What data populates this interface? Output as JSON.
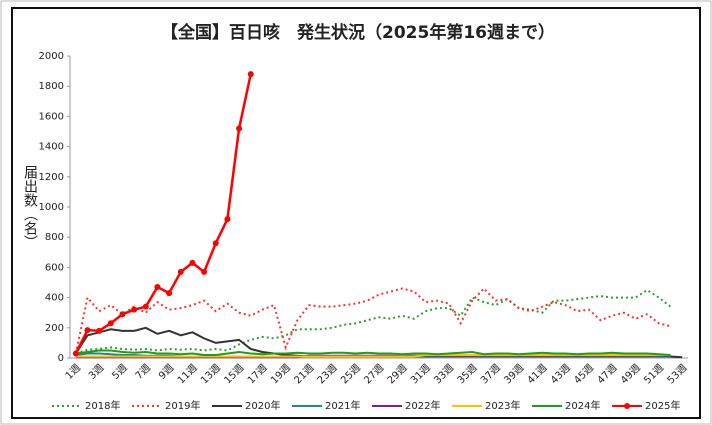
{
  "chart_data": {
    "type": "line",
    "title": "【全国】百日咳　発生状況（2025年第16週まで）",
    "y_label": "届出数（名）",
    "categories": [
      "1週",
      null,
      "3週",
      null,
      "5週",
      null,
      "7週",
      null,
      "9週",
      null,
      "11週",
      null,
      "13週",
      null,
      "15週",
      null,
      "17週",
      null,
      "19週",
      null,
      "21週",
      null,
      "23週",
      null,
      "25週",
      null,
      "27週",
      null,
      "29週",
      null,
      "31週",
      null,
      "33週",
      null,
      "35週",
      null,
      "37週",
      null,
      "39週",
      null,
      "41週",
      null,
      "43週",
      null,
      "45週",
      null,
      "47週",
      null,
      "49週",
      null,
      "51週",
      null,
      "53週"
    ],
    "ylim": [
      0,
      2000
    ],
    "yticks": [
      0,
      200,
      400,
      600,
      800,
      1000,
      1200,
      1400,
      1600,
      1800,
      2000
    ],
    "grid": false,
    "legend": "bottom",
    "series": [
      {
        "name": "2018年",
        "color": "#2e9e2e",
        "dash": "dotted",
        "values": [
          30,
          55,
          60,
          70,
          60,
          55,
          60,
          50,
          60,
          55,
          60,
          50,
          60,
          50,
          90,
          120,
          140,
          130,
          150,
          190,
          190,
          190,
          200,
          220,
          230,
          250,
          270,
          260,
          280,
          260,
          310,
          330,
          330,
          280,
          400,
          370,
          350,
          390,
          330,
          320,
          300,
          380,
          380,
          390,
          400,
          410,
          400,
          400,
          400,
          450,
          400,
          340,
          null
        ]
      },
      {
        "name": "2019年",
        "color": "#ff3030",
        "dash": "dotted",
        "values": [
          30,
          400,
          310,
          350,
          290,
          340,
          300,
          370,
          320,
          330,
          350,
          380,
          310,
          360,
          300,
          280,
          320,
          350,
          70,
          250,
          350,
          340,
          340,
          350,
          360,
          380,
          420,
          440,
          460,
          440,
          370,
          380,
          360,
          230,
          380,
          460,
          380,
          390,
          330,
          310,
          340,
          370,
          350,
          310,
          320,
          250,
          280,
          300,
          260,
          290,
          230,
          210,
          null
        ]
      },
      {
        "name": "2020年",
        "color": "#333333",
        "dash": "solid",
        "values": [
          30,
          150,
          170,
          190,
          180,
          180,
          200,
          160,
          180,
          150,
          170,
          130,
          100,
          110,
          120,
          60,
          40,
          30,
          20,
          15,
          10,
          10,
          10,
          10,
          10,
          10,
          10,
          10,
          10,
          10,
          10,
          10,
          10,
          10,
          10,
          10,
          10,
          10,
          10,
          10,
          10,
          10,
          10,
          10,
          10,
          10,
          10,
          10,
          10,
          10,
          10,
          10,
          5
        ]
      },
      {
        "name": "2021年",
        "color": "#1f8a8a",
        "dash": "solid",
        "values": [
          20,
          30,
          30,
          25,
          20,
          20,
          15,
          15,
          15,
          10,
          10,
          10,
          10,
          10,
          10,
          10,
          10,
          10,
          10,
          10,
          10,
          10,
          10,
          10,
          10,
          10,
          10,
          10,
          10,
          10,
          10,
          10,
          10,
          10,
          10,
          10,
          10,
          10,
          10,
          10,
          10,
          10,
          10,
          10,
          10,
          10,
          10,
          10,
          10,
          10,
          10,
          10,
          null
        ]
      },
      {
        "name": "2022年",
        "color": "#7a1fa0",
        "dash": "solid",
        "values": [
          5,
          5,
          5,
          5,
          5,
          5,
          5,
          5,
          5,
          5,
          5,
          5,
          5,
          5,
          5,
          5,
          5,
          5,
          5,
          5,
          15,
          15,
          15,
          15,
          15,
          15,
          15,
          15,
          15,
          15,
          15,
          15,
          15,
          15,
          15,
          15,
          15,
          15,
          15,
          15,
          15,
          15,
          15,
          15,
          15,
          15,
          15,
          15,
          15,
          15,
          15,
          15,
          null
        ]
      },
      {
        "name": "2023年",
        "color": "#ffc000",
        "dash": "solid",
        "values": [
          10,
          10,
          10,
          10,
          10,
          10,
          10,
          10,
          10,
          10,
          10,
          10,
          10,
          10,
          10,
          10,
          10,
          10,
          10,
          10,
          10,
          10,
          10,
          10,
          10,
          10,
          10,
          10,
          10,
          10,
          20,
          20,
          20,
          20,
          20,
          20,
          20,
          20,
          20,
          20,
          20,
          20,
          20,
          20,
          20,
          20,
          20,
          20,
          20,
          20,
          20,
          20,
          null
        ]
      },
      {
        "name": "2024年",
        "color": "#1aa01a",
        "dash": "solid",
        "values": [
          30,
          40,
          50,
          50,
          40,
          35,
          40,
          30,
          30,
          25,
          30,
          20,
          20,
          30,
          40,
          30,
          25,
          30,
          30,
          35,
          30,
          30,
          35,
          35,
          30,
          35,
          30,
          30,
          25,
          30,
          30,
          25,
          30,
          35,
          40,
          25,
          30,
          30,
          25,
          30,
          35,
          30,
          30,
          25,
          30,
          30,
          35,
          30,
          30,
          30,
          25,
          20,
          null
        ]
      },
      {
        "name": "2025年",
        "color": "#ff0000",
        "dash": "solid",
        "marker": "circle",
        "values": [
          30,
          185,
          180,
          230,
          290,
          320,
          340,
          470,
          430,
          570,
          630,
          570,
          760,
          920,
          1520,
          1880,
          null,
          null,
          null,
          null,
          null,
          null,
          null,
          null,
          null,
          null,
          null,
          null,
          null,
          null,
          null,
          null,
          null,
          null,
          null,
          null,
          null,
          null,
          null,
          null,
          null,
          null,
          null,
          null,
          null,
          null,
          null,
          null,
          null,
          null,
          null,
          null,
          null
        ]
      }
    ]
  }
}
